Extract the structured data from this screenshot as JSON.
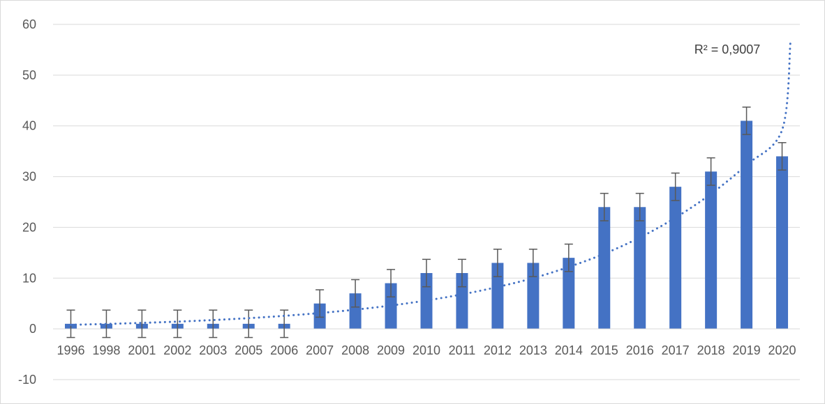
{
  "chart_data": {
    "type": "bar",
    "categories": [
      "1996",
      "1998",
      "2001",
      "2002",
      "2003",
      "2005",
      "2006",
      "2007",
      "2008",
      "2009",
      "2010",
      "2011",
      "2012",
      "2013",
      "2014",
      "2015",
      "2016",
      "2017",
      "2018",
      "2019",
      "2020"
    ],
    "values": [
      1,
      1,
      1,
      1,
      1,
      1,
      1,
      5,
      7,
      9,
      11,
      11,
      13,
      13,
      14,
      24,
      24,
      28,
      31,
      41,
      34
    ],
    "error_bars": {
      "plus": 2.7,
      "minus": 2.7
    },
    "trendline": {
      "type": "exponential",
      "style": "dotted",
      "values": [
        0.8,
        0.97,
        1.18,
        1.43,
        1.74,
        2.11,
        2.57,
        3.12,
        3.79,
        4.6,
        5.6,
        6.8,
        8.26,
        10.0,
        12.2,
        14.8,
        18.0,
        21.9,
        26.6,
        32.3,
        39.2
      ],
      "extended_end_value": 56.6
    },
    "annotations": [
      {
        "text": "R² = 0,9007"
      }
    ],
    "yticks": [
      "-10",
      "0",
      "10",
      "20",
      "30",
      "40",
      "50",
      "60"
    ],
    "ylim": [
      -10,
      60
    ],
    "title": "",
    "xlabel": "",
    "ylabel": "",
    "grid": true,
    "legend": "none",
    "colors": {
      "bar": "#4472c4",
      "trendline": "#4472c4",
      "error_bar": "#595959",
      "grid": "#d9d9d9",
      "text": "#595959"
    }
  }
}
